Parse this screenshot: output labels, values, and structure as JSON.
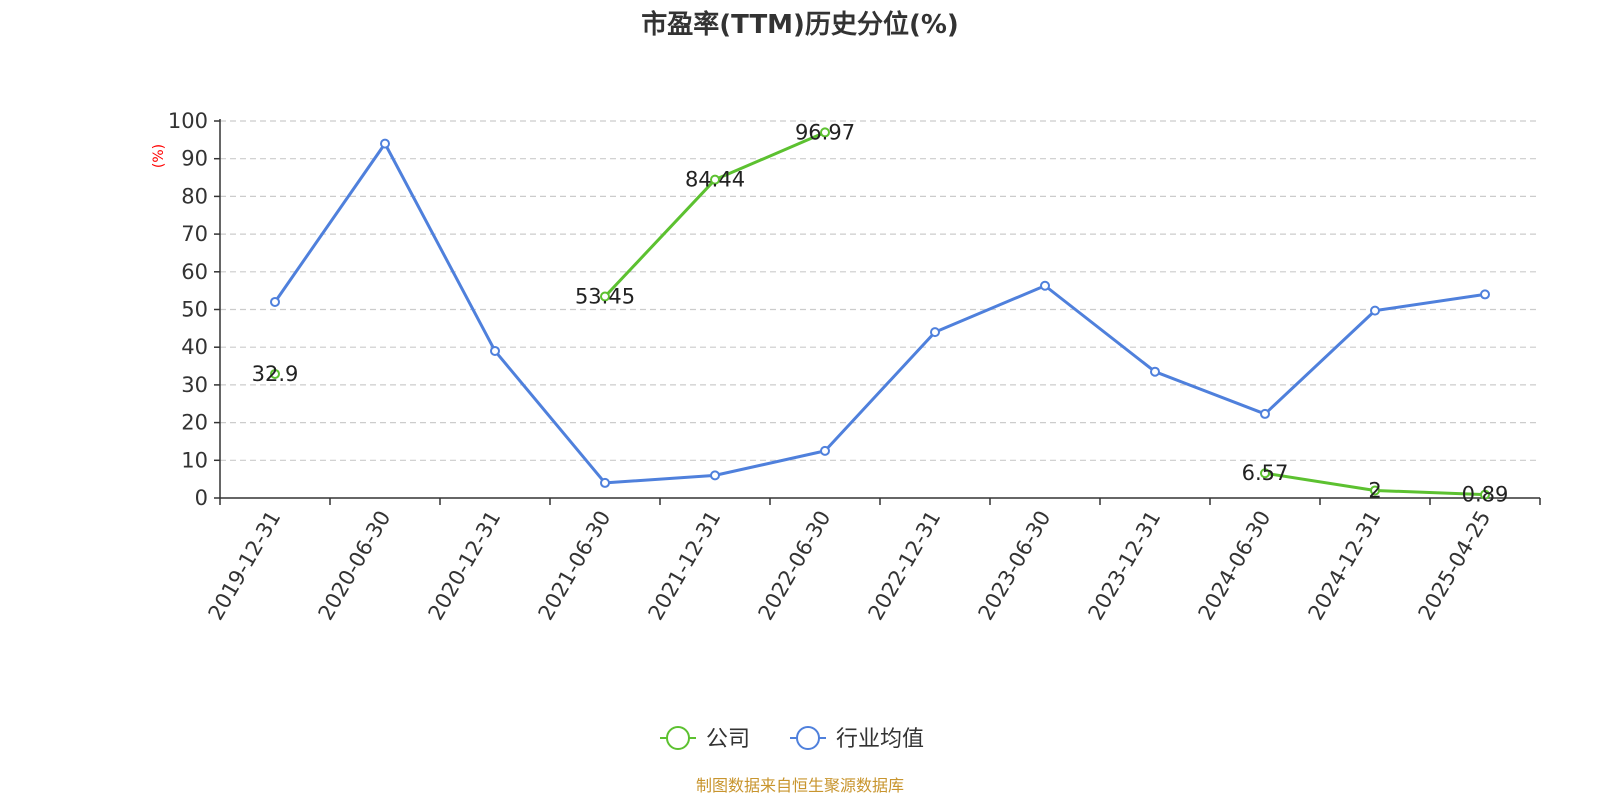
{
  "chart_data": {
    "type": "line",
    "title": "市盈率(TTM)历史分位(%)",
    "ylabel": "(%)",
    "xlabel": "",
    "ylim": [
      0,
      100
    ],
    "yticks": [
      0,
      10,
      20,
      30,
      40,
      50,
      60,
      70,
      80,
      90,
      100
    ],
    "grid": "horizontal-dashed",
    "legend_position": "bottom",
    "categories": [
      "2019-12-31",
      "2020-06-30",
      "2020-12-31",
      "2021-06-30",
      "2021-12-31",
      "2022-06-30",
      "2022-12-31",
      "2023-06-30",
      "2023-12-31",
      "2024-06-30",
      "2024-12-31",
      "2025-04-25"
    ],
    "series": [
      {
        "name": "公司",
        "color": "#5cc130",
        "show_labels": true,
        "values": [
          32.9,
          null,
          null,
          53.45,
          84.44,
          96.97,
          null,
          null,
          null,
          6.57,
          2,
          0.89
        ],
        "labels": [
          "32.9",
          "",
          "",
          "53.45",
          "84.44",
          "96.97",
          "",
          "",
          "",
          "6.57",
          "2",
          "0.89"
        ]
      },
      {
        "name": "行业均值",
        "color": "#4f80dc",
        "show_labels": false,
        "values": [
          52,
          94,
          39,
          4,
          6,
          12.5,
          44,
          56.3,
          33.5,
          22.3,
          49.7,
          54
        ]
      }
    ],
    "source": "制图数据来自恒生聚源数据库",
    "source_color": "#c8952e",
    "ylabel_color": "#ff0000"
  }
}
